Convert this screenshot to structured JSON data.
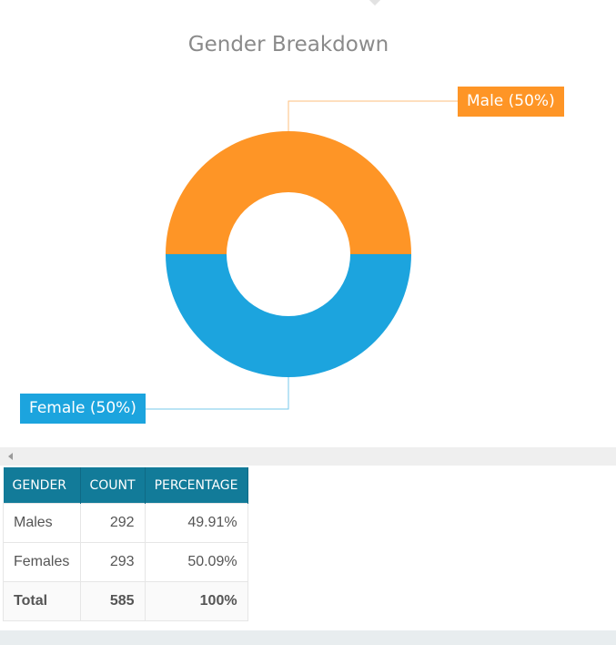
{
  "chart_data": {
    "type": "pie",
    "title": "Gender Breakdown",
    "donut": true,
    "slices": [
      {
        "name": "Male",
        "label": "Male (50%)",
        "percent": 50,
        "color": "#fe9526"
      },
      {
        "name": "Female",
        "label": "Female (50%)",
        "percent": 50,
        "color": "#1ca4de"
      }
    ]
  },
  "table": {
    "headers": [
      "GENDER",
      "COUNT",
      "PERCENTAGE"
    ],
    "rows": [
      {
        "gender": "Males",
        "count": "292",
        "percentage": "49.91%"
      },
      {
        "gender": "Females",
        "count": "293",
        "percentage": "50.09%"
      }
    ],
    "total": {
      "gender": "Total",
      "count": "585",
      "percentage": "100%"
    },
    "header_color": "#127b99"
  }
}
